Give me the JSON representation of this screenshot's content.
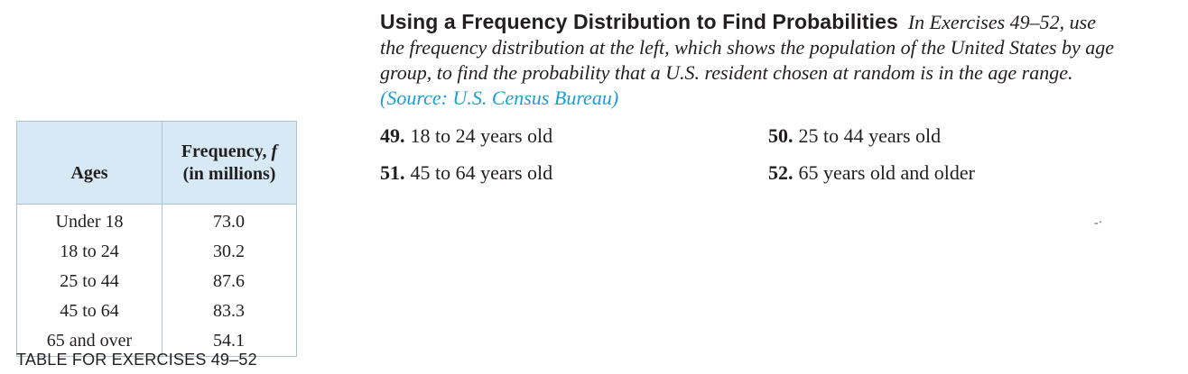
{
  "exercise_intro": {
    "heading": "Using a Frequency Distribution to Find Probabilities",
    "text": "In Exercises 49–52, use the frequency distribution at the left, which shows the population of the United States by age group, to find the probability that a U.S. resident chosen at random is in the age range.",
    "source": "(Source: U.S. Census Bureau)"
  },
  "exercises": [
    {
      "number": "49.",
      "text": "18 to 24 years old"
    },
    {
      "number": "50.",
      "text": "25 to 44 years old"
    },
    {
      "number": "51.",
      "text": "45 to 64 years old"
    },
    {
      "number": "52.",
      "text": "65 years old and older"
    }
  ],
  "table": {
    "header_ages": "Ages",
    "header_freq_line1_prefix": "Frequency, ",
    "header_freq_symbol": "f",
    "header_freq_line2": "(in millions)",
    "rows": [
      {
        "age": "Under 18",
        "frequency": "73.0"
      },
      {
        "age": "18 to 24",
        "frequency": "30.2"
      },
      {
        "age": "25 to 44",
        "frequency": "87.6"
      },
      {
        "age": "45 to 64",
        "frequency": "83.3"
      },
      {
        "age": "65 and over",
        "frequency": "54.1"
      }
    ]
  },
  "table_caption": "TABLE FOR EXERCISES 49–52",
  "colors": {
    "header_fill": "#d6e9f4",
    "border": "#a9c3d1",
    "source_link": "#1b9fd2",
    "text": "#231f20"
  }
}
